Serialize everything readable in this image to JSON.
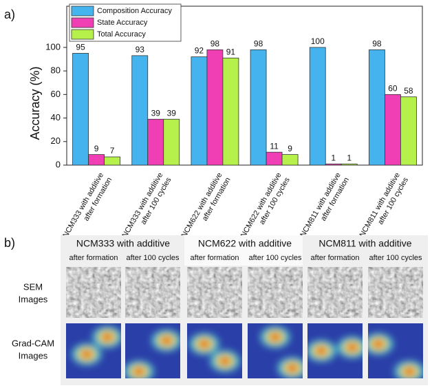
{
  "panel_labels": {
    "a": "a)",
    "b": "b)"
  },
  "chart_data": {
    "type": "bar",
    "y_label": "Accuracy (%)",
    "categories": [
      [
        "NCM333 with additive",
        "after formation"
      ],
      [
        "NCM333 with additive",
        "after 100 cycles"
      ],
      [
        "NCM622 with additive",
        "after formation"
      ],
      [
        "NCM622 with additive",
        "after 100 cycles"
      ],
      [
        "NCM811 with additive",
        "after formation"
      ],
      [
        "NCM811 with additive",
        "after 100 cycles"
      ]
    ],
    "series": [
      {
        "name": "Composition Accuracy",
        "color": "#45b4ee",
        "values": [
          95,
          93,
          92,
          98,
          100,
          98
        ]
      },
      {
        "name": "State Accuracy",
        "color": "#f03fb4",
        "values": [
          9,
          39,
          98,
          11,
          1,
          60
        ]
      },
      {
        "name": "Total Accuracy",
        "color": "#b6f04a",
        "values": [
          7,
          39,
          91,
          9,
          1,
          58
        ]
      }
    ],
    "ylim": [
      0,
      135
    ],
    "yticks": [
      0,
      20,
      40,
      60,
      80,
      100
    ],
    "grid": false,
    "legend": "top-left"
  },
  "image_grid": {
    "groups": [
      {
        "title": "NCM333 with additive",
        "columns": [
          "after formation",
          "after 100 cycles"
        ]
      },
      {
        "title": "NCM622 with additive",
        "columns": [
          "after formation",
          "after 100 cycles"
        ]
      },
      {
        "title": "NCM811 with additive",
        "columns": [
          "after formation",
          "after 100 cycles"
        ]
      }
    ],
    "rows": [
      [
        "SEM",
        "Images"
      ],
      [
        "Grad-CAM",
        "Images"
      ]
    ]
  }
}
